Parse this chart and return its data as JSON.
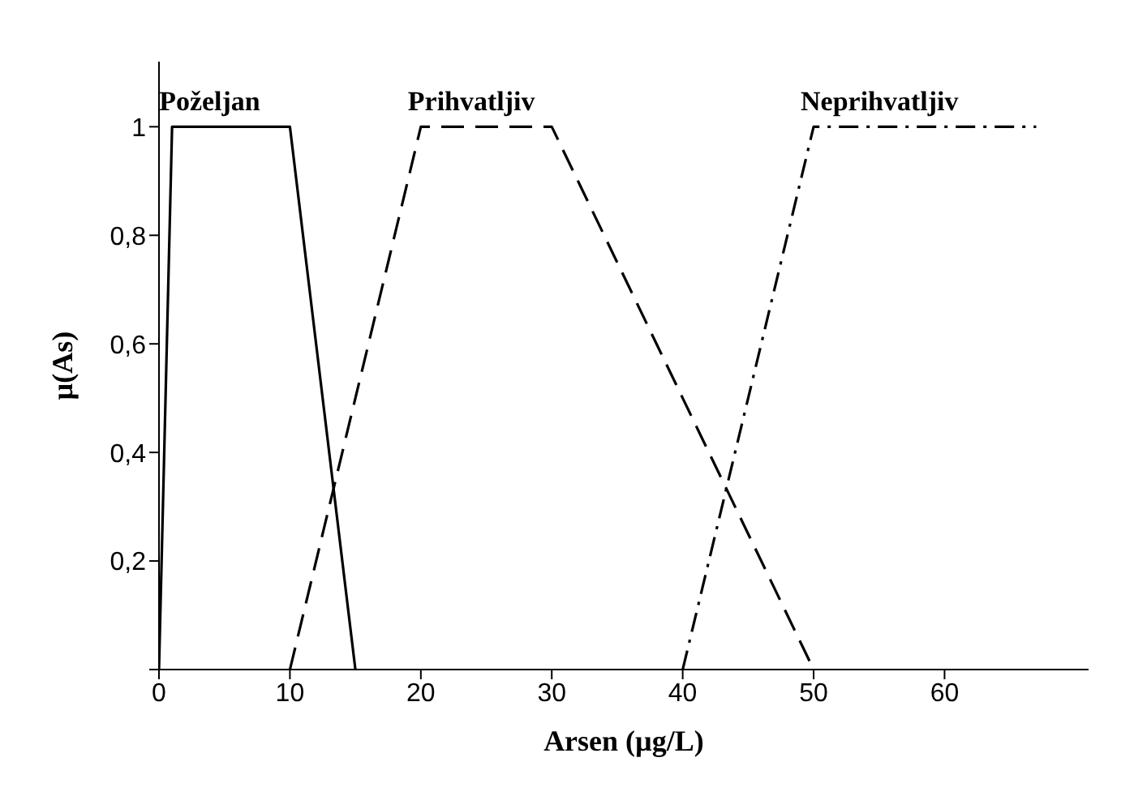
{
  "chart_data": {
    "type": "line",
    "xlabel": "Arsen (µg/L)",
    "ylabel": "µ(As)",
    "xlim": [
      0,
      71
    ],
    "xticks": [
      0,
      10,
      20,
      30,
      40,
      50,
      60
    ],
    "ylim": [
      0,
      1.12
    ],
    "yticks": [
      {
        "value": 0,
        "label": null
      },
      {
        "value": 0.2,
        "label": "0,2"
      },
      {
        "value": 0.4,
        "label": "0,4"
      },
      {
        "value": 0.6,
        "label": "0,6"
      },
      {
        "value": 0.8,
        "label": "0,8"
      },
      {
        "value": 1,
        "label": "1"
      }
    ],
    "grid": false,
    "legend": false,
    "marker": "none",
    "series": [
      {
        "name": "Poželjan",
        "color": "#000000",
        "line_style": "solid",
        "x": [
          0,
          1,
          10,
          15
        ],
        "values": [
          0,
          1,
          1,
          0
        ]
      },
      {
        "name": "Prihvatljiv",
        "color": "#000000",
        "line_style": "dashed",
        "x": [
          10,
          20,
          30,
          50
        ],
        "values": [
          0,
          1,
          1,
          0
        ]
      },
      {
        "name": "Neprihvatljiv",
        "color": "#000000",
        "line_style": "dashdot",
        "x": [
          40,
          50,
          67
        ],
        "values": [
          0,
          1,
          1
        ]
      }
    ]
  }
}
